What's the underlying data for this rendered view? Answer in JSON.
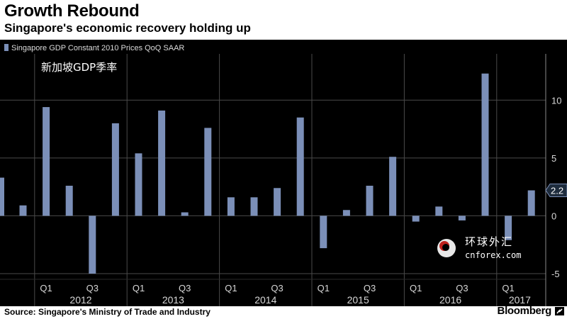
{
  "header": {
    "title": "Growth Rebound",
    "subtitle": "Singapore's economic recovery holding up"
  },
  "footer": {
    "source": "Source: Singapore's Ministry of Trade and Industry",
    "brand": "Bloomberg"
  },
  "watermark": {
    "chinese_name": "环球外汇",
    "site": "cnforex.com"
  },
  "annotation": "新加坡GDP季率",
  "colors": {
    "bar": "#7b8fb8",
    "background": "#000000",
    "grid": "#4a4a4a",
    "text": "#ffffff",
    "axis_text": "#d8d8d8"
  },
  "chart_data": {
    "type": "bar",
    "title": "Growth Rebound",
    "subtitle": "Singapore's economic recovery holding up",
    "legend": [
      "Singapore GDP Constant 2010 Prices QoQ SAAR"
    ],
    "legend_position": "top-left",
    "xlabel": "",
    "ylabel": "",
    "y_axis_side": "right",
    "ylim": [
      -5,
      14
    ],
    "y_ticks": [
      -5,
      0,
      5,
      10
    ],
    "grid": true,
    "latest_value_label": "2.2",
    "categories": [
      "2011 Q4",
      "2012 Q1",
      "2012 Q2",
      "2012 Q3",
      "2012 Q4",
      "2013 Q1",
      "2013 Q2",
      "2013 Q3",
      "2013 Q4",
      "2014 Q1",
      "2014 Q2",
      "2014 Q3",
      "2014 Q4",
      "2015 Q1",
      "2015 Q2",
      "2015 Q3",
      "2015 Q4",
      "2016 Q1",
      "2016 Q2",
      "2016 Q3",
      "2016 Q4",
      "2017 Q1",
      "2017 Q2"
    ],
    "series": [
      {
        "name": "Singapore GDP Constant 2010 Prices QoQ SAAR",
        "values": [
          0.9,
          9.4,
          2.6,
          -5.0,
          8.0,
          5.4,
          9.1,
          0.3,
          7.6,
          1.6,
          1.6,
          2.4,
          8.5,
          -2.8,
          0.5,
          2.6,
          5.1,
          -0.5,
          0.8,
          -0.4,
          12.3,
          -2.1,
          2.2
        ]
      }
    ],
    "partial_left_value": 3.3,
    "x_axis": {
      "quarter_labels": [
        "Q1",
        "Q3",
        "Q1",
        "Q3",
        "Q1",
        "Q3",
        "Q1",
        "Q3",
        "Q1",
        "Q3",
        "Q1"
      ],
      "years": [
        "2012",
        "2013",
        "2014",
        "2015",
        "2016",
        "2017"
      ]
    }
  }
}
